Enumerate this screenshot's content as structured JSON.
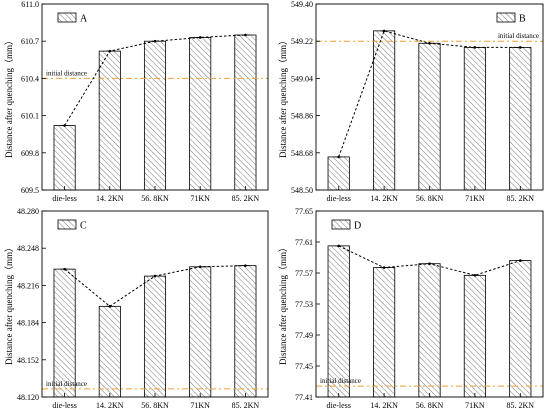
{
  "colors": {
    "bar_stroke": "#000000",
    "hatch": "#555555",
    "reference_line": "#f0a030",
    "trend_line": "#000000"
  },
  "chart_data": [
    {
      "type": "bar",
      "legend": "A",
      "legend_position": "top-left",
      "categories": [
        "die-less",
        "14. 2KN",
        "56. 8KN",
        "71KN",
        "85. 2KN"
      ],
      "values": [
        610.02,
        610.62,
        610.7,
        610.73,
        610.75
      ],
      "ylabel": "Distance after quenching（mm）",
      "ylim": [
        609.5,
        611.0
      ],
      "yticks": [
        609.5,
        609.8,
        610.1,
        610.4,
        610.7,
        611.0
      ],
      "ytick_labels": [
        "609.5",
        "609.8",
        "610.1",
        "610.4",
        "610.7",
        "611.0"
      ],
      "reference": {
        "label": "initial distance",
        "value": 610.4
      },
      "grid": false
    },
    {
      "type": "bar",
      "legend": "B",
      "legend_position": "top-right",
      "categories": [
        "die-less",
        "14. 2KN",
        "56. 8KN",
        "71KN",
        "85. 2KN"
      ],
      "values": [
        548.66,
        549.27,
        549.21,
        549.19,
        549.19
      ],
      "ylabel": "Distance after quenching（mm）",
      "ylim": [
        548.5,
        549.4
      ],
      "yticks": [
        548.5,
        548.68,
        548.86,
        549.04,
        549.22,
        549.4
      ],
      "ytick_labels": [
        "548.50",
        "548.68",
        "548.86",
        "549.04",
        "549.22",
        "549.40"
      ],
      "reference": {
        "label": "initial distance",
        "value": 549.22
      },
      "grid": false
    },
    {
      "type": "bar",
      "legend": "C",
      "legend_position": "top-left",
      "categories": [
        "die-less",
        "14. 2KN",
        "56. 8KN",
        "71KN",
        "85. 2KN"
      ],
      "values": [
        48.23,
        48.198,
        48.224,
        48.232,
        48.233
      ],
      "ylabel": "Distance after quenching（mm）",
      "ylim": [
        48.12,
        48.28
      ],
      "yticks": [
        48.12,
        48.152,
        48.184,
        48.216,
        48.248,
        48.28
      ],
      "ytick_labels": [
        "48.120",
        "48.152",
        "48.184",
        "48.216",
        "48.248",
        "48.280"
      ],
      "reference": {
        "label": "initial distance",
        "value": 48.127
      },
      "grid": false
    },
    {
      "type": "bar",
      "legend": "D",
      "legend_position": "top-left",
      "categories": [
        "die-less",
        "14. 2KN",
        "56. 8KN",
        "71KN",
        "85. 2KN"
      ],
      "values": [
        77.605,
        77.577,
        77.582,
        77.567,
        77.586
      ],
      "ylabel": "Distance after quenching（mm）",
      "ylim": [
        77.41,
        77.65
      ],
      "yticks": [
        77.41,
        77.45,
        77.49,
        77.53,
        77.57,
        77.61,
        77.65
      ],
      "ytick_labels": [
        "77.41",
        "77.45",
        "77.49",
        "77.53",
        "77.57",
        "77.61",
        "77.65"
      ],
      "reference": {
        "label": "initial distance",
        "value": 77.424
      },
      "grid": false
    }
  ]
}
